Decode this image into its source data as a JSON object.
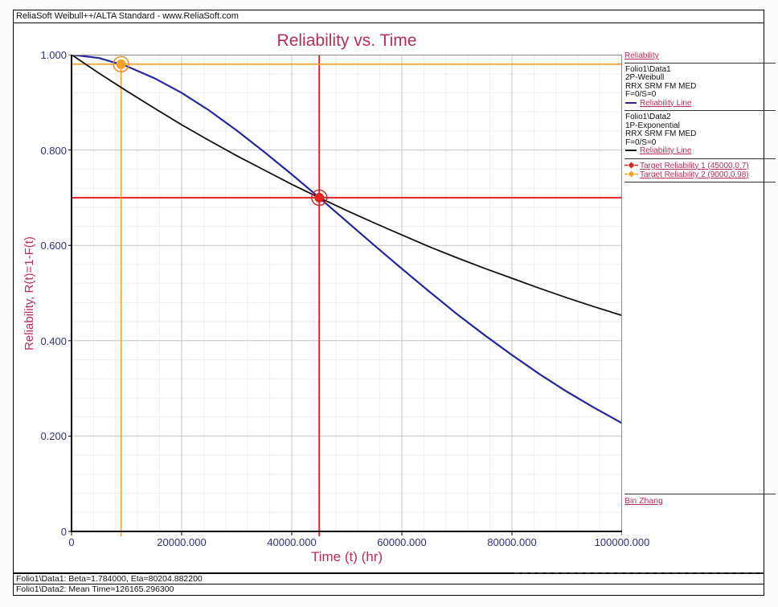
{
  "window": {
    "titlebar": "ReliaSoft Weibull++/ALTA Standard - www.ReliaSoft.com"
  },
  "chart": {
    "title": "Reliability vs. Time",
    "xlabel": "Time (t) (hr)",
    "ylabel": "Reliability, R(t)=1-F(t)"
  },
  "chart_data": {
    "type": "line",
    "title": "Reliability vs. Time",
    "xlabel": "Time (t) (hr)",
    "ylabel": "Reliability, R(t)=1-F(t)",
    "xlim": [
      0,
      100000
    ],
    "ylim": [
      0,
      1.0
    ],
    "grid": {
      "x_minor_step": 4000,
      "y_minor_step": 0.04,
      "x_major_step": 20000,
      "y_major_step": 0.2
    },
    "legend_position": "right",
    "x_tick_values": [
      0,
      20000,
      40000,
      60000,
      80000,
      100000
    ],
    "x_tick_labels": [
      "0",
      "20000.000",
      "40000.000",
      "60000.000",
      "80000.000",
      "100000.000"
    ],
    "y_tick_values": [
      1.0,
      0.8,
      0.6,
      0.4,
      0.2,
      0
    ],
    "y_tick_labels": [
      "1.000",
      "0.800",
      "0.600",
      "0.400",
      "0.200",
      "0"
    ],
    "series": [
      {
        "name": "Folio1\\Data1 2P-Weibull Reliability Line",
        "model": "2P-Weibull, Beta=1.784000, Eta=80204.882200",
        "color": "#2626a0",
        "width": 2.2,
        "x": [
          0,
          5000,
          10000,
          15000,
          20000,
          25000,
          30000,
          35000,
          40000,
          45000,
          50000,
          55000,
          60000,
          65000,
          70000,
          75000,
          80000,
          85000,
          90000,
          95000,
          100000
        ],
        "y": [
          1.0,
          0.993,
          0.976,
          0.951,
          0.92,
          0.883,
          0.841,
          0.796,
          0.749,
          0.7,
          0.65,
          0.6,
          0.551,
          0.503,
          0.456,
          0.412,
          0.37,
          0.33,
          0.293,
          0.259,
          0.227
        ]
      },
      {
        "name": "Folio1\\Data2 1P-Exponential Reliability Line",
        "model": "1P-Exponential, Mean Time=126165.296300",
        "color": "#111111",
        "width": 1.8,
        "x": [
          0,
          5000,
          10000,
          15000,
          20000,
          25000,
          30000,
          35000,
          40000,
          45000,
          50000,
          55000,
          60000,
          65000,
          70000,
          75000,
          80000,
          85000,
          90000,
          95000,
          100000
        ],
        "y": [
          1.0,
          0.961,
          0.924,
          0.888,
          0.853,
          0.82,
          0.788,
          0.758,
          0.728,
          0.7,
          0.673,
          0.647,
          0.622,
          0.597,
          0.574,
          0.552,
          0.531,
          0.51,
          0.49,
          0.471,
          0.453
        ]
      }
    ],
    "targets": [
      {
        "name": "Target Reliability 1",
        "x": 45000,
        "y": 0.7,
        "vline_top": 1.0,
        "color": "#e32222",
        "ring": "#c03030",
        "line_width": 2.0
      },
      {
        "name": "Target Reliability 2",
        "x": 9000,
        "y": 0.98,
        "vline_top": 0.98,
        "color": "#f2a029",
        "ring": "#dd9020",
        "line_width": 1.6
      }
    ]
  },
  "legend": {
    "header": "Reliability",
    "entries": [
      {
        "lines": [
          "Folio1\\Data1",
          "2P-Weibull",
          "RRX SRM FM MED",
          "F=0/S=0"
        ],
        "line_label": "Reliability Line",
        "swatch": "#2626a0"
      },
      {
        "lines": [
          "Folio1\\Data2",
          "1P-Exponential",
          "RRX SRM FM MED",
          "F=0/S=0"
        ],
        "line_label": "Reliability Line",
        "swatch": "#111111"
      }
    ],
    "targets": [
      {
        "label": "Target Reliability 1 (45000,0.7)",
        "color": "#e32222"
      },
      {
        "label": "Target Reliability 2 (9000,0.98)",
        "color": "#f2a029"
      }
    ],
    "signature": "Bin Zhang"
  },
  "footer": {
    "line1": "Folio1\\Data1: Beta=1.784000, Eta=80204.882200",
    "line2": "Folio1\\Data2: Mean Time=126165.296300"
  },
  "colors": {
    "accent_crimson": "#b62f55",
    "axis_label_blue": "#31317d",
    "grid_minor": "#eeeeee",
    "grid_major": "#c4c4c4",
    "frame_dark": "#000000",
    "frame_light": "#888888"
  }
}
